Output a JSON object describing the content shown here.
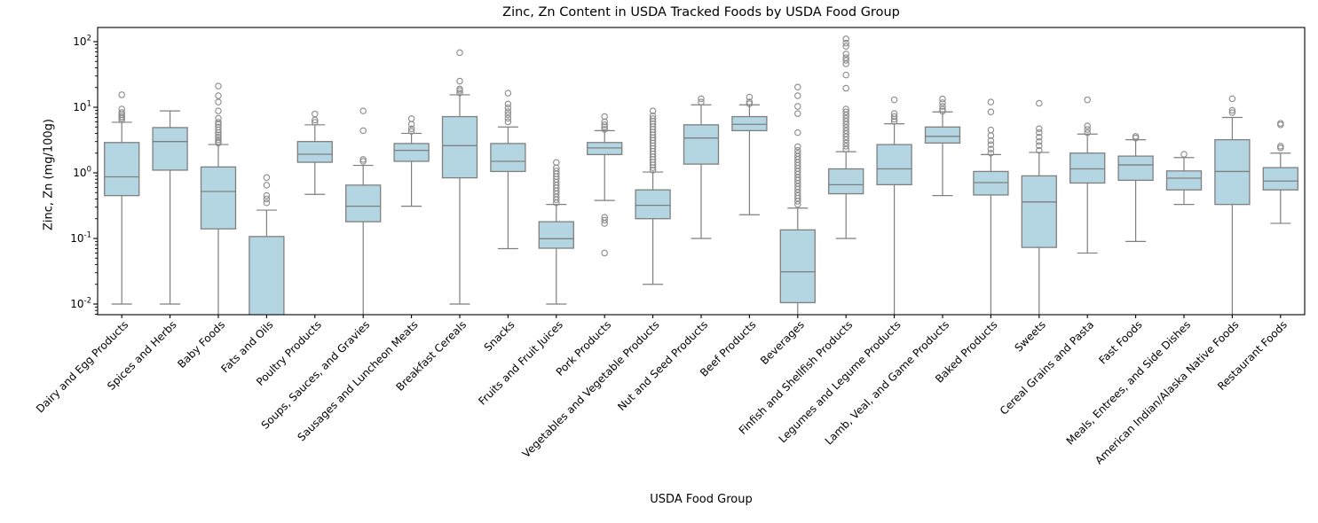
{
  "title": "Zinc, Zn Content in USDA Tracked Foods by USDA Food Group",
  "xlabel": "USDA Food Group",
  "ylabel": "Zinc, Zn (mg/100g)",
  "chart_data": {
    "type": "box",
    "log_y": true,
    "ylim": [
      0.0069,
      164
    ],
    "y_tick_base": "10",
    "y_ticks_exponents": [
      -2,
      -1,
      0,
      1,
      2
    ],
    "grid": false,
    "colors": {
      "box_fill": "#b4d6e2",
      "box_edge": "#7f7f7f",
      "whisker": "#7f7f7f",
      "median": "#7f7f7f",
      "flier_edge": "#8a8a8a",
      "axis": "#000000"
    },
    "groups": [
      {
        "label": "Dairy and Egg Products",
        "lo": 0.01,
        "q1": 0.45,
        "med": 0.87,
        "q3": 2.9,
        "hi": 5.9,
        "outliers": [
          6.4,
          6.8,
          7.2,
          7.7,
          8.3,
          9.4,
          15.5
        ],
        "clipped_low": false
      },
      {
        "label": "Spices and Herbs",
        "lo": 0.01,
        "q1": 1.1,
        "med": 3.0,
        "q3": 4.9,
        "hi": 8.8,
        "outliers": [],
        "clipped_low": false
      },
      {
        "label": "Baby Foods",
        "lo": 0.004,
        "q1": 0.14,
        "med": 0.52,
        "q3": 1.23,
        "hi": 2.7,
        "outliers": [
          2.85,
          3.0,
          3.2,
          3.5,
          3.8,
          4.1,
          4.5,
          5.0,
          5.5,
          5.9,
          6.8,
          8.8,
          12,
          15,
          21
        ],
        "clipped_low": true
      },
      {
        "label": "Fats and Oils",
        "lo": 0.003,
        "q1": 0.004,
        "med": 0.0045,
        "q3": 0.107,
        "hi": 0.27,
        "outliers": [
          0.35,
          0.4,
          0.45,
          0.65,
          0.85
        ],
        "clipped_low": true
      },
      {
        "label": "Poultry Products",
        "lo": 0.47,
        "q1": 1.45,
        "med": 1.92,
        "q3": 3.0,
        "hi": 5.4,
        "outliers": [
          5.9,
          6.4,
          7.9
        ],
        "clipped_low": false
      },
      {
        "label": "Soups, Sauces, and Gravies",
        "lo": 0.004,
        "q1": 0.18,
        "med": 0.31,
        "q3": 0.65,
        "hi": 1.3,
        "outliers": [
          1.5,
          1.6,
          4.4,
          8.8
        ],
        "clipped_low": true
      },
      {
        "label": "Sausages and Luncheon Meats",
        "lo": 0.31,
        "q1": 1.5,
        "med": 2.2,
        "q3": 2.8,
        "hi": 4.0,
        "outliers": [
          4.3,
          4.7,
          5.5,
          6.7
        ],
        "clipped_low": false
      },
      {
        "label": "Breakfast Cereals",
        "lo": 0.01,
        "q1": 0.84,
        "med": 2.6,
        "q3": 7.2,
        "hi": 15.5,
        "outliers": [
          16.5,
          18,
          19,
          25,
          68
        ],
        "clipped_low": false
      },
      {
        "label": "Snacks",
        "lo": 0.07,
        "q1": 1.05,
        "med": 1.5,
        "q3": 2.8,
        "hi": 5.0,
        "outliers": [
          6.0,
          6.8,
          7.7,
          8.6,
          9.8,
          11.2,
          16.4
        ],
        "clipped_low": false
      },
      {
        "label": "Fruits and Fruit Juices",
        "lo": 0.01,
        "q1": 0.071,
        "med": 0.099,
        "q3": 0.18,
        "hi": 0.33,
        "outliers": [
          0.35,
          0.39,
          0.43,
          0.48,
          0.53,
          0.59,
          0.65,
          0.72,
          0.8,
          0.88,
          0.97,
          1.07,
          1.19,
          1.44
        ],
        "clipped_low": false
      },
      {
        "label": "Pork Products",
        "lo": 0.38,
        "q1": 1.9,
        "med": 2.4,
        "q3": 2.9,
        "hi": 4.4,
        "outliers": [
          0.06,
          0.17,
          0.19,
          0.21,
          4.6,
          5.0,
          5.4,
          6.0,
          7.2
        ],
        "clipped_low": false
      },
      {
        "label": "Vegetables and Vegetable Products",
        "lo": 0.02,
        "q1": 0.2,
        "med": 0.32,
        "q3": 0.55,
        "hi": 1.03,
        "outliers": [
          1.1,
          1.2,
          1.32,
          1.45,
          1.6,
          1.76,
          1.94,
          2.13,
          2.35,
          2.58,
          2.84,
          3.13,
          3.44,
          3.79,
          4.17,
          4.59,
          5.05,
          5.6,
          6.1,
          6.7,
          7.4,
          8.8
        ],
        "clipped_low": false
      },
      {
        "label": "Nut and Seed Products",
        "lo": 0.1,
        "q1": 1.36,
        "med": 3.4,
        "q3": 5.4,
        "hi": 10.9,
        "outliers": [
          12,
          13.5
        ],
        "clipped_low": false
      },
      {
        "label": "Beef Products",
        "lo": 0.23,
        "q1": 4.4,
        "med": 5.5,
        "q3": 7.2,
        "hi": 10.9,
        "outliers": [
          11.3,
          12,
          14.3
        ],
        "clipped_low": false
      },
      {
        "label": "Beverages",
        "lo": 0.004,
        "q1": 0.0105,
        "med": 0.031,
        "q3": 0.135,
        "hi": 0.29,
        "outliers": [
          0.33,
          0.37,
          0.41,
          0.45,
          0.5,
          0.56,
          0.62,
          0.69,
          0.77,
          0.85,
          0.95,
          1.05,
          1.17,
          1.3,
          1.44,
          1.6,
          1.78,
          1.98,
          2.2,
          2.5,
          4.1,
          8.0,
          10.3,
          15,
          20.3
        ],
        "clipped_low": true
      },
      {
        "label": "Finfish and Shellfish Products",
        "lo": 0.1,
        "q1": 0.48,
        "med": 0.66,
        "q3": 1.15,
        "hi": 2.1,
        "outliers": [
          2.3,
          2.55,
          2.85,
          3.2,
          3.55,
          3.95,
          4.4,
          4.9,
          5.5,
          6.1,
          6.8,
          7.6,
          8.5,
          9.4,
          19.5,
          31,
          46,
          52,
          57,
          65,
          85,
          95,
          110
        ],
        "clipped_low": false
      },
      {
        "label": "Legumes and Legume Products",
        "lo": 0.004,
        "q1": 0.66,
        "med": 1.15,
        "q3": 2.7,
        "hi": 5.6,
        "outliers": [
          6.1,
          6.6,
          7.2,
          8.0,
          13
        ],
        "clipped_low": true
      },
      {
        "label": "Lamb, Veal, and Game Products",
        "lo": 0.45,
        "q1": 2.85,
        "med": 3.6,
        "q3": 5.0,
        "hi": 8.5,
        "outliers": [
          8.7,
          9.3,
          10.3,
          11.7,
          13.4
        ],
        "clipped_low": false
      },
      {
        "label": "Baked Products",
        "lo": 0.004,
        "q1": 0.46,
        "med": 0.71,
        "q3": 1.05,
        "hi": 1.9,
        "outliers": [
          2.0,
          2.3,
          2.7,
          3.1,
          3.7,
          4.5,
          8.5,
          12
        ],
        "clipped_low": true
      },
      {
        "label": "Sweets",
        "lo": 0.004,
        "q1": 0.073,
        "med": 0.36,
        "q3": 0.9,
        "hi": 2.05,
        "outliers": [
          2.2,
          2.6,
          3.0,
          3.5,
          4.1,
          4.7,
          11.5
        ],
        "clipped_low": true
      },
      {
        "label": "Cereal Grains and Pasta",
        "lo": 0.06,
        "q1": 0.7,
        "med": 1.15,
        "q3": 2.0,
        "hi": 3.9,
        "outliers": [
          4.1,
          4.6,
          5.2,
          13
        ],
        "clipped_low": false
      },
      {
        "label": "Fast Foods",
        "lo": 0.09,
        "q1": 0.77,
        "med": 1.32,
        "q3": 1.8,
        "hi": 3.2,
        "outliers": [
          3.4,
          3.6
        ],
        "clipped_low": false
      },
      {
        "label": "Meals, Entrees, and Side Dishes",
        "lo": 0.33,
        "q1": 0.55,
        "med": 0.83,
        "q3": 1.07,
        "hi": 1.71,
        "outliers": [
          1.92
        ],
        "clipped_low": false
      },
      {
        "label": "American Indian/Alaska Native Foods",
        "lo": 0.004,
        "q1": 0.33,
        "med": 1.05,
        "q3": 3.2,
        "hi": 7.0,
        "outliers": [
          8.3,
          9.0,
          13.5
        ],
        "clipped_low": true
      },
      {
        "label": "Restaurant Foods",
        "lo": 0.17,
        "q1": 0.55,
        "med": 0.75,
        "q3": 1.2,
        "hi": 2.0,
        "outliers": [
          2.4,
          2.55,
          5.4,
          5.7
        ],
        "clipped_low": false
      }
    ]
  }
}
